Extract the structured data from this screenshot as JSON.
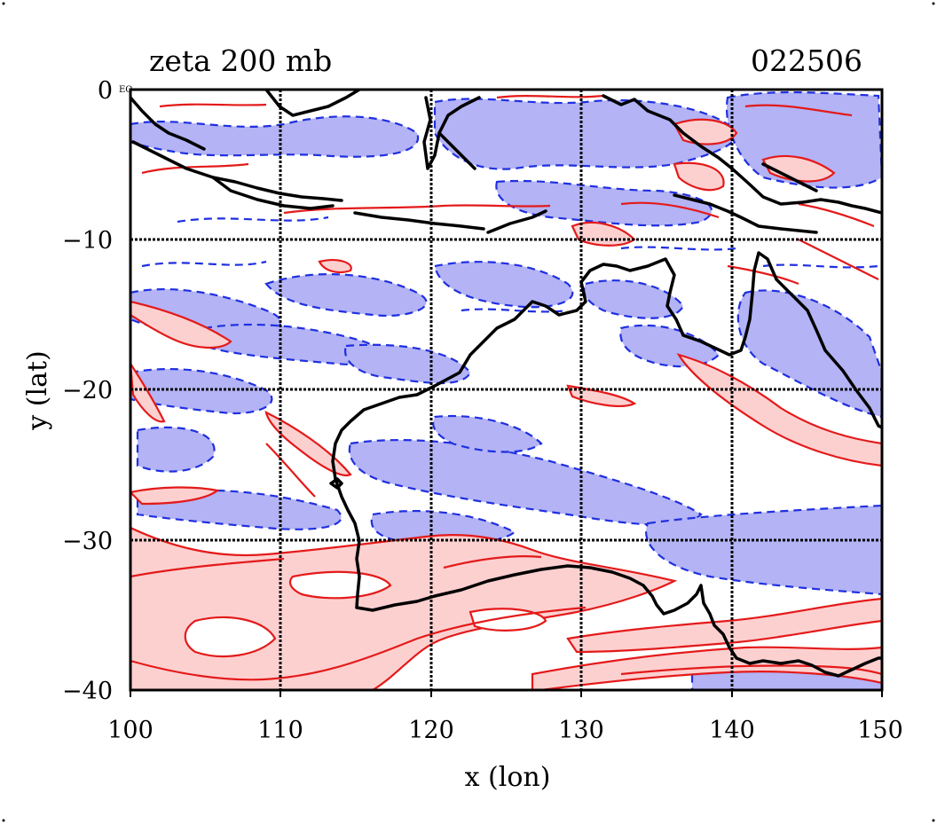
{
  "title": "zeta 200 mb",
  "date_code": "022506",
  "corner_label": "EQ",
  "axes": {
    "x": {
      "label": "x (lon)",
      "range": [
        100,
        150
      ],
      "ticks": [
        "100",
        "110",
        "120",
        "130",
        "140",
        "150"
      ]
    },
    "y": {
      "label": "y (lat)",
      "range": [
        -40,
        0
      ],
      "ticks": [
        "0",
        "−10",
        "−20",
        "−30",
        "−40"
      ]
    }
  },
  "map": {
    "region": "Australia and Maritime Continent",
    "grid": true,
    "grid_lon": [
      110,
      120,
      130,
      140
    ],
    "grid_lat": [
      -10,
      -20,
      -30
    ],
    "colors": {
      "positive_fill": "#fdd0d0",
      "positive_contour": "#e41a1a",
      "negative_fill": "#b3b3f5",
      "negative_contour": "#1f2fe0",
      "coastline": "#000000"
    }
  }
}
